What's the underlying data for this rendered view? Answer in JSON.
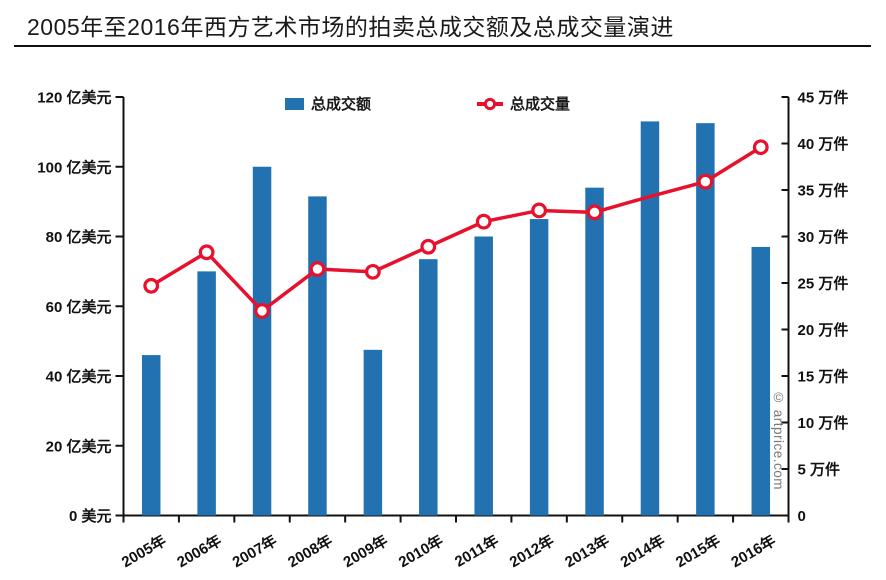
{
  "title": "2005年至2016年西方艺术市场的拍卖总成交额及总成交量演进",
  "watermark": "© artprice.com",
  "legend": {
    "bars_label": "总成交额",
    "line_label": "总成交量"
  },
  "colors": {
    "bar": "#2272b2",
    "line": "#e8112d",
    "axis": "#111111",
    "text": "#111111",
    "watermark": "#7a7a7a"
  },
  "chart_data": {
    "type": "bar+line",
    "categories": [
      "2005年",
      "2006年",
      "2007年",
      "2008年",
      "2009年",
      "2010年",
      "2011年",
      "2012年",
      "2013年",
      "2014年",
      "2015年",
      "2016年"
    ],
    "series": [
      {
        "name": "总成交额",
        "type": "bar",
        "axis": "left",
        "values": [
          46,
          70,
          100,
          91.5,
          47.5,
          73.5,
          80,
          85,
          94,
          113,
          112.5,
          77
        ]
      },
      {
        "name": "总成交量",
        "type": "line",
        "axis": "right",
        "values": [
          24.7,
          28.3,
          22.0,
          26.5,
          26.2,
          28.9,
          31.6,
          32.8,
          32.6,
          34.3,
          35.9,
          39.6
        ],
        "hidden_marker_categories": [
          "2014年"
        ]
      }
    ],
    "left_axis": {
      "min": 0,
      "max": 120,
      "step": 20,
      "unit": "亿美元",
      "tick_values": [
        120,
        100,
        80,
        60,
        40,
        20,
        0
      ],
      "tick_labels": [
        "120 亿美元",
        "100 亿美元",
        "80 亿美元",
        "60 亿美元",
        "40 亿美元",
        "20 亿美元",
        "0 美元"
      ]
    },
    "right_axis": {
      "min": 0,
      "max": 45,
      "step": 5,
      "unit": "万件",
      "tick_values": [
        45,
        40,
        35,
        30,
        25,
        20,
        15,
        10,
        5,
        0
      ],
      "tick_labels": [
        "45 万件",
        "40 万件",
        "35 万件",
        "30 万件",
        "25 万件",
        "20 万件",
        "15 万件",
        "10 万件",
        "5 万件",
        "0"
      ]
    },
    "grid": false,
    "legend_position": "top"
  }
}
